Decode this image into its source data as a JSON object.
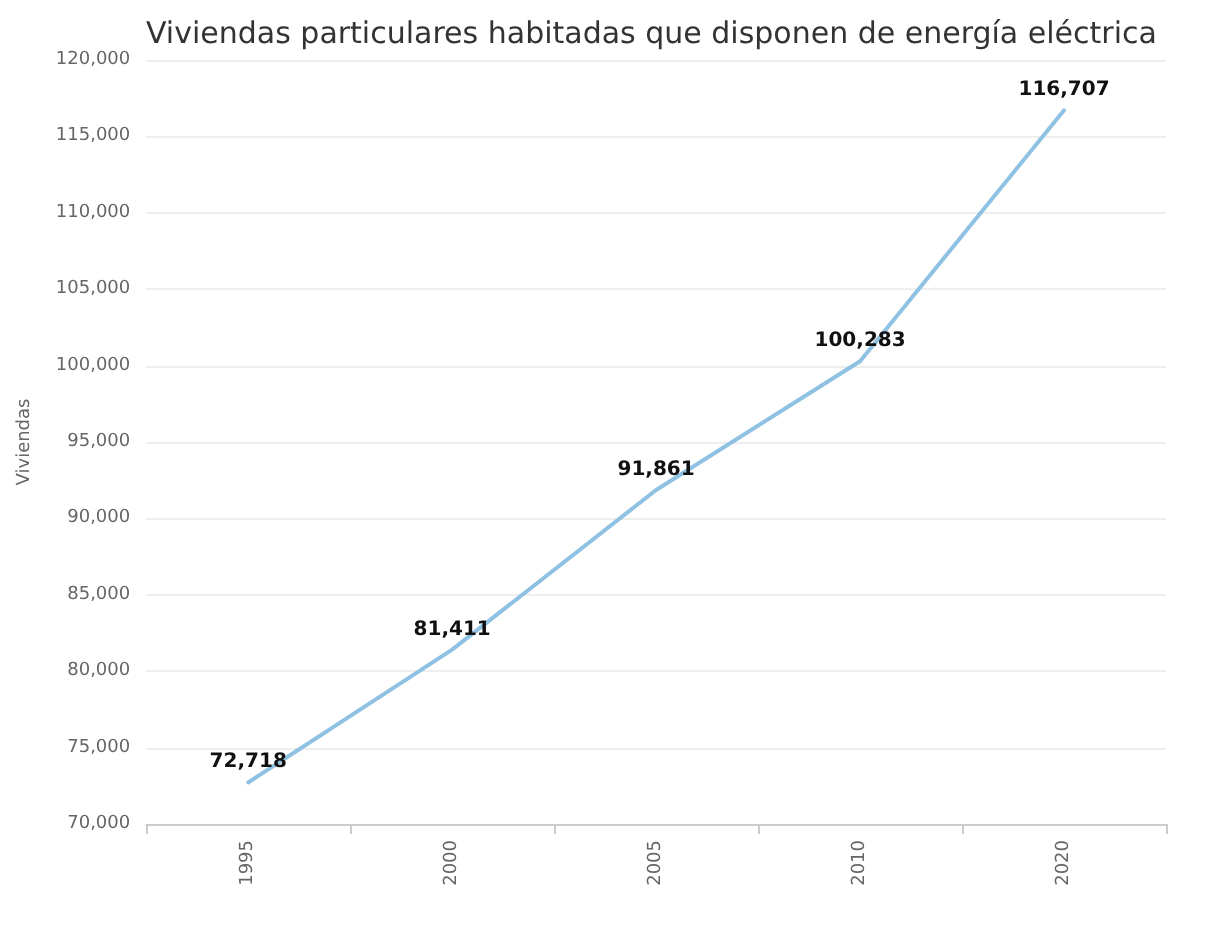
{
  "chart_data": {
    "type": "line",
    "title": "Viviendas particulares habitadas que disponen de energía eléctrica",
    "ylabel": "Viviendas",
    "categories": [
      "1995",
      "2000",
      "2005",
      "2010",
      "2020"
    ],
    "series": [
      {
        "color": "#8fc1e3",
        "values": [
          72718,
          81411,
          91861,
          100283,
          116707
        ],
        "value_labels": [
          "72,718",
          "81,411",
          "91,861",
          "100,283",
          "116,707"
        ]
      }
    ],
    "ylim": [
      70000,
      120000
    ],
    "yticks": [
      {
        "value": 70000,
        "label": "70,000"
      },
      {
        "value": 75000,
        "label": "75,000"
      },
      {
        "value": 80000,
        "label": "80,000"
      },
      {
        "value": 85000,
        "label": "85,000"
      },
      {
        "value": 90000,
        "label": "90,000"
      },
      {
        "value": 95000,
        "label": "95,000"
      },
      {
        "value": 100000,
        "label": "100,000"
      },
      {
        "value": 105000,
        "label": "105,000"
      },
      {
        "value": 110000,
        "label": "110,000"
      },
      {
        "value": 115000,
        "label": "115,000"
      },
      {
        "value": 120000,
        "label": "120,000"
      }
    ],
    "grid": "y",
    "marker": "none",
    "line_style": "solid"
  }
}
